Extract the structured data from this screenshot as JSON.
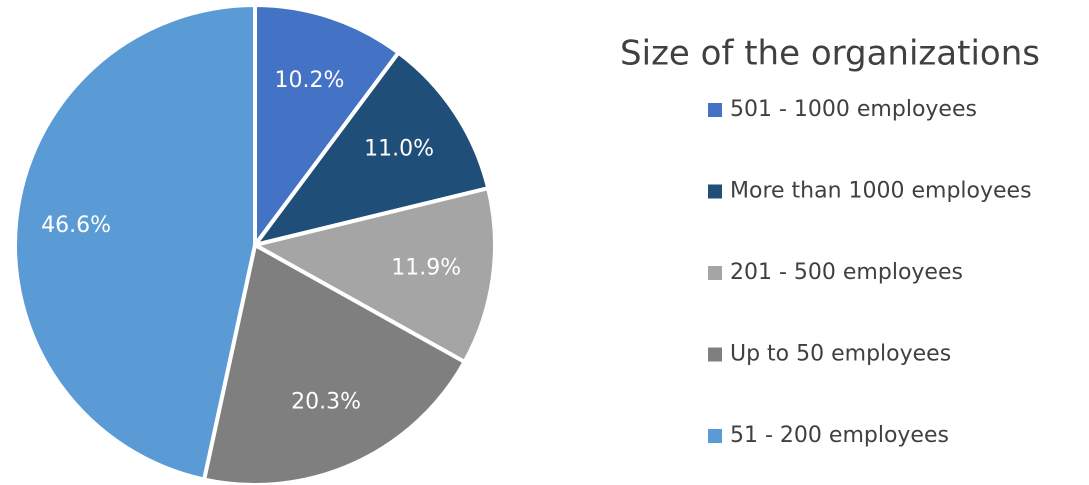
{
  "chart_data": {
    "type": "pie",
    "title": "Size of the organizations",
    "categories": [
      "501 - 1000 employees",
      "More than 1000 employees",
      "201 - 500 employees",
      "Up to 50 employees",
      "51 - 200 employees"
    ],
    "values": [
      10.2,
      11.0,
      11.9,
      20.3,
      46.6
    ],
    "value_labels": [
      "10.2%",
      "11.0%",
      "11.9%",
      "20.3%",
      "46.6%"
    ],
    "colors": [
      "#4472c4",
      "#1f4e79",
      "#a5a5a5",
      "#7f7f7f",
      "#5b9bd5"
    ],
    "legend": "right"
  }
}
